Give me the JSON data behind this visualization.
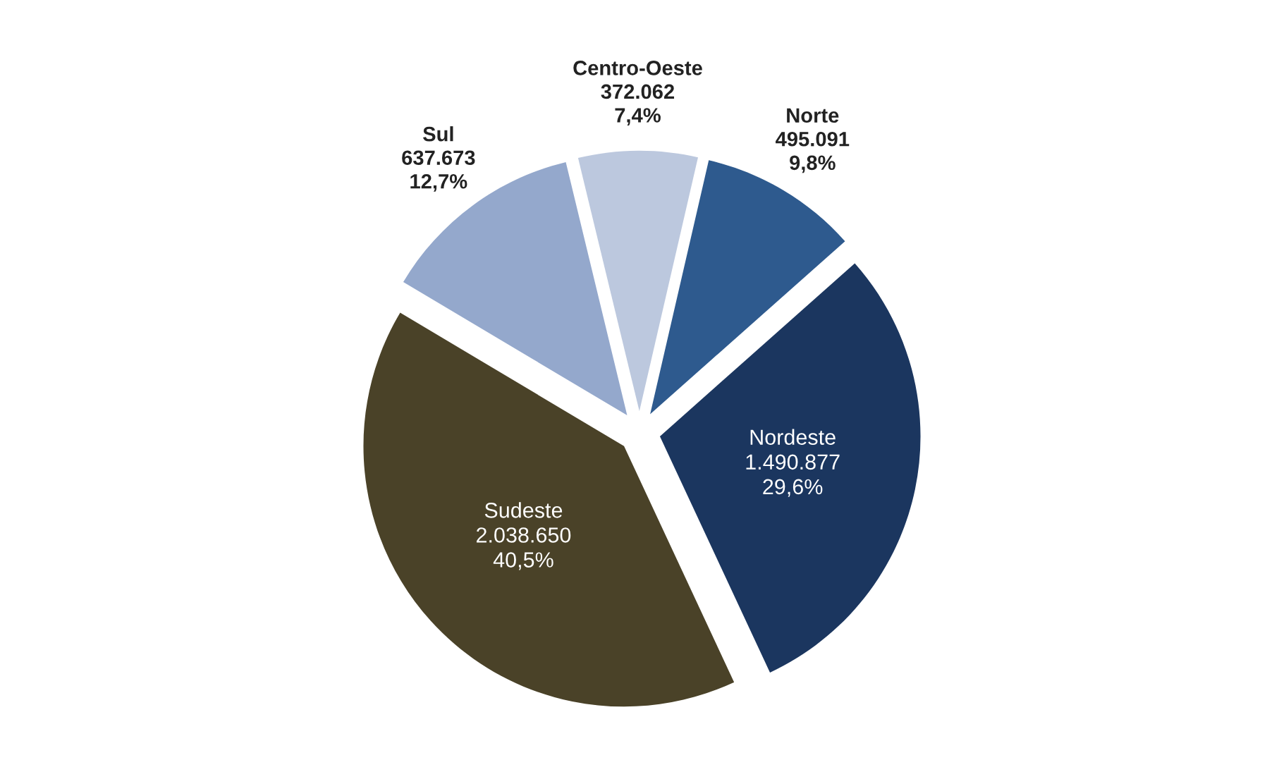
{
  "chart_data": {
    "type": "pie",
    "categories": [
      "Norte",
      "Nordeste",
      "Sudeste",
      "Sul",
      "Centro-Oeste"
    ],
    "values": [
      495091,
      1490877,
      2038650,
      637673,
      372062
    ],
    "value_labels": [
      "495.091\n9,8%",
      "1.490.877\n29,6%",
      "2.038.650\n40,5%",
      "637.673\n12,7%",
      "372.062\n7,4%"
    ],
    "colors": [
      "#2e5a8e",
      "#1b365f",
      "#4a4228",
      "#94a8cc",
      "#bcc8de"
    ]
  }
}
